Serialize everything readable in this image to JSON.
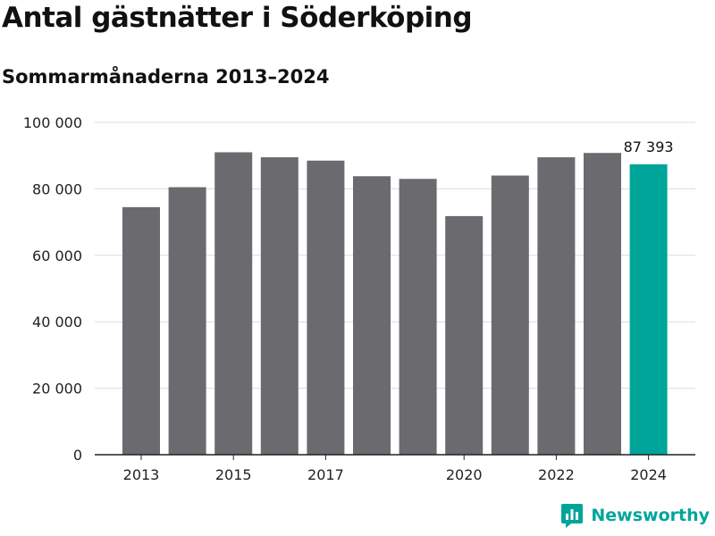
{
  "chart_data": {
    "type": "bar",
    "title": "Antal gästnätter i Söderköping",
    "subtitle": "Sommarmånaderna 2013–2024",
    "categories": [
      "2013",
      "2014",
      "2015",
      "2016",
      "2017",
      "2018",
      "2019",
      "2020",
      "2021",
      "2022",
      "2023",
      "2024"
    ],
    "values": [
      74500,
      80500,
      91000,
      89500,
      88500,
      83800,
      83000,
      71800,
      84000,
      89500,
      90800,
      87393
    ],
    "x_tick_labels": [
      "2013",
      "",
      "2015",
      "",
      "2017",
      "",
      "",
      "2020",
      "",
      "2022",
      "",
      "2024"
    ],
    "y_ticks": [
      0,
      20000,
      40000,
      60000,
      80000,
      100000
    ],
    "y_tick_labels": [
      "0",
      "20 000",
      "40 000",
      "60 000",
      "80 000",
      "100 000"
    ],
    "ylim": [
      0,
      100000
    ],
    "xlabel": "",
    "ylabel": "",
    "grid": true,
    "highlight_index": 11,
    "highlight_label": "87 393",
    "colors": {
      "bar": "#6b6a6f",
      "highlight": "#00a59a",
      "grid": "#dcdcdc",
      "axis": "#222222"
    }
  },
  "brand": {
    "name": "Newsworthy",
    "color": "#00a59a"
  }
}
